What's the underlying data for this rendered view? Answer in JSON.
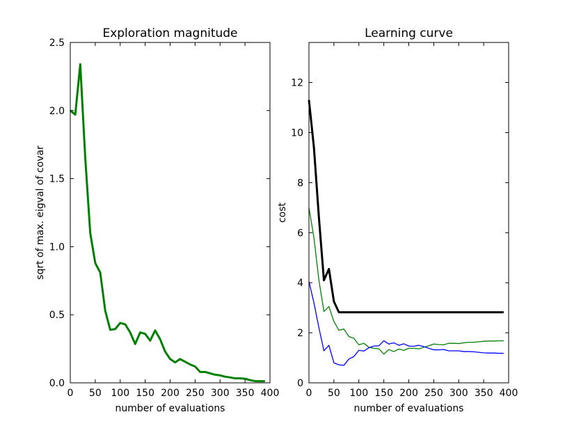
{
  "chart_data": [
    {
      "type": "line",
      "title": "Exploration magnitude",
      "xlabel": "number of evaluations",
      "ylabel": "sqrt of max. eigval of covar",
      "xlim": [
        0,
        400
      ],
      "ylim": [
        0,
        2.5
      ],
      "xticks": [
        "0",
        "50",
        "100",
        "150",
        "200",
        "250",
        "300",
        "350",
        "400"
      ],
      "yticks": [
        "0.0",
        "0.5",
        "1.0",
        "1.5",
        "2.0",
        "2.5"
      ],
      "grid": false,
      "series": [
        {
          "color": "#008000",
          "width": "thick",
          "x": [
            0,
            10,
            20,
            30,
            40,
            50,
            60,
            70,
            80,
            90,
            100,
            110,
            120,
            130,
            140,
            150,
            160,
            170,
            180,
            190,
            200,
            210,
            220,
            230,
            240,
            250,
            260,
            270,
            280,
            290,
            300,
            310,
            320,
            330,
            340,
            350,
            360,
            370,
            380,
            390
          ],
          "y": [
            2.0,
            1.97,
            2.34,
            1.65,
            1.1,
            0.88,
            0.81,
            0.53,
            0.39,
            0.395,
            0.44,
            0.43,
            0.37,
            0.285,
            0.37,
            0.36,
            0.31,
            0.385,
            0.32,
            0.23,
            0.175,
            0.15,
            0.175,
            0.155,
            0.135,
            0.12,
            0.08,
            0.08,
            0.07,
            0.06,
            0.055,
            0.045,
            0.04,
            0.033,
            0.033,
            0.03,
            0.02,
            0.013,
            0.012,
            0.012
          ]
        }
      ]
    },
    {
      "type": "line",
      "title": "Learning curve",
      "xlabel": "number of evaluations",
      "ylabel": "cost",
      "xlim": [
        0,
        400
      ],
      "ylim": [
        0,
        13.6
      ],
      "xticks": [
        "0",
        "50",
        "100",
        "150",
        "200",
        "250",
        "300",
        "350",
        "400"
      ],
      "yticks": [
        "0",
        "2",
        "4",
        "6",
        "8",
        "10",
        "12"
      ],
      "grid": false,
      "series": [
        {
          "color": "#000000",
          "width": "thick",
          "x": [
            0,
            10,
            20,
            30,
            40,
            50,
            60,
            70,
            80,
            90,
            100,
            110,
            120,
            130,
            140,
            150,
            160,
            170,
            180,
            190,
            200,
            210,
            220,
            230,
            240,
            250,
            260,
            270,
            280,
            290,
            300,
            310,
            320,
            330,
            340,
            350,
            360,
            370,
            380,
            390
          ],
          "y": [
            11.3,
            9.4,
            6.6,
            4.1,
            4.55,
            3.25,
            2.82,
            2.82,
            2.82,
            2.82,
            2.82,
            2.82,
            2.82,
            2.82,
            2.82,
            2.82,
            2.82,
            2.82,
            2.82,
            2.82,
            2.82,
            2.82,
            2.82,
            2.82,
            2.82,
            2.82,
            2.82,
            2.82,
            2.82,
            2.82,
            2.82,
            2.82,
            2.82,
            2.82,
            2.82,
            2.82,
            2.82,
            2.82,
            2.82,
            2.82
          ]
        },
        {
          "color": "#008000",
          "width": "thin",
          "x": [
            0,
            10,
            20,
            30,
            40,
            50,
            60,
            70,
            80,
            90,
            100,
            110,
            120,
            130,
            140,
            150,
            160,
            170,
            180,
            190,
            200,
            210,
            220,
            230,
            240,
            250,
            260,
            270,
            280,
            290,
            300,
            310,
            320,
            330,
            340,
            350,
            360,
            370,
            380,
            390
          ],
          "y": [
            7.0,
            5.8,
            4.1,
            2.85,
            3.05,
            2.45,
            2.1,
            2.15,
            1.85,
            1.78,
            1.52,
            1.58,
            1.42,
            1.38,
            1.36,
            1.15,
            1.33,
            1.25,
            1.35,
            1.3,
            1.38,
            1.38,
            1.36,
            1.42,
            1.48,
            1.55,
            1.53,
            1.52,
            1.58,
            1.58,
            1.57,
            1.6,
            1.62,
            1.62,
            1.64,
            1.66,
            1.67,
            1.67,
            1.68,
            1.68
          ]
        },
        {
          "color": "#0000ff",
          "width": "thin",
          "x": [
            0,
            10,
            20,
            30,
            40,
            50,
            60,
            70,
            80,
            90,
            100,
            110,
            120,
            130,
            140,
            150,
            160,
            170,
            180,
            190,
            200,
            210,
            220,
            230,
            240,
            250,
            260,
            270,
            280,
            290,
            300,
            310,
            320,
            330,
            340,
            350,
            360,
            370,
            380,
            390
          ],
          "y": [
            4.05,
            3.2,
            2.2,
            1.28,
            1.5,
            0.8,
            0.72,
            0.7,
            0.95,
            1.05,
            1.3,
            1.27,
            1.4,
            1.47,
            1.48,
            1.68,
            1.55,
            1.6,
            1.5,
            1.56,
            1.47,
            1.46,
            1.5,
            1.45,
            1.38,
            1.32,
            1.32,
            1.33,
            1.28,
            1.28,
            1.28,
            1.25,
            1.25,
            1.24,
            1.22,
            1.2,
            1.19,
            1.19,
            1.18,
            1.18
          ]
        }
      ]
    }
  ]
}
